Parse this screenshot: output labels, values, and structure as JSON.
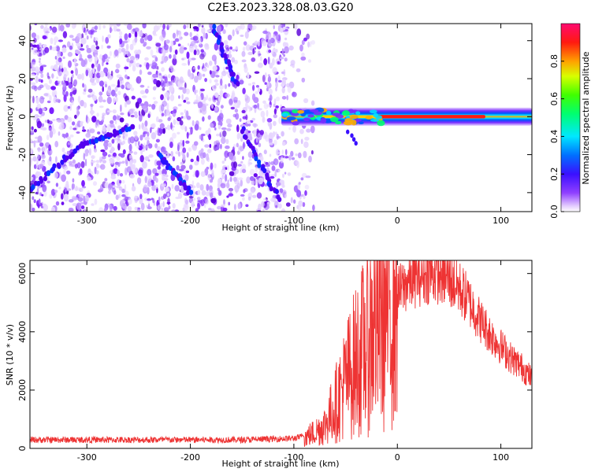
{
  "figure": {
    "title": "C2E3.2023.328.08.03.G20"
  },
  "colorbar": {
    "label": "Normalized spectral amplitude",
    "ticks": [
      "0.0",
      "0.2",
      "0.4",
      "0.6",
      "0.8"
    ],
    "tick_values": [
      0.0,
      0.2,
      0.4,
      0.6,
      0.8
    ],
    "range": [
      0,
      1
    ]
  },
  "chart_data": [
    {
      "type": "heatmap",
      "xlabel": "Height of straight line (km)",
      "ylabel": "Frequency (Hz)",
      "xlim": [
        -355,
        130
      ],
      "ylim": [
        -50,
        49
      ],
      "x_ticks": [
        -300,
        -200,
        -100,
        0,
        100
      ],
      "y_ticks": [
        -40,
        -20,
        0,
        20,
        40
      ],
      "x_tick_labels": [
        "-300",
        "-200",
        "-100",
        "0",
        "100"
      ],
      "y_tick_labels": [
        "-40",
        "-20",
        "0",
        "20",
        "40"
      ],
      "noise_region_x": [
        -355,
        -88
      ],
      "signal_band": {
        "x_start": -112,
        "x_end": 130,
        "center_frequency_hz": 0,
        "approx_half_width_hz": 3,
        "description": "narrow band near 0 Hz, peak amplitude ~1.0 between -20 and 80 km"
      },
      "streaks": [
        {
          "from": [
            -178,
            47
          ],
          "to": [
            -155,
            17
          ]
        },
        {
          "from": [
            -150,
            -7
          ],
          "to": [
            -115,
            -43
          ]
        },
        {
          "from": [
            -355,
            -38
          ],
          "to": [
            -305,
            -15
          ]
        },
        {
          "from": [
            -305,
            -15
          ],
          "to": [
            -255,
            -5
          ]
        },
        {
          "from": [
            -230,
            -20
          ],
          "to": [
            -200,
            -40
          ]
        }
      ]
    },
    {
      "type": "line",
      "xlabel": "Height of straight line (km)",
      "ylabel": "SNR (10 * v/v)",
      "xlim": [
        -355,
        130
      ],
      "ylim": [
        0,
        6450
      ],
      "x_ticks": [
        -300,
        -200,
        -100,
        0,
        100
      ],
      "y_ticks": [
        0,
        2000,
        4000,
        6000
      ],
      "x_tick_labels": [
        "-300",
        "-200",
        "-100",
        "0",
        "100"
      ],
      "y_tick_labels": [
        "0",
        "2000",
        "4000",
        "6000"
      ],
      "series": [
        {
          "color": "#ee3333",
          "x": [
            -355,
            -300,
            -250,
            -200,
            -150,
            -120,
            -100,
            -90,
            -80,
            -70,
            -60,
            -50,
            -40,
            -30,
            -20,
            -10,
            0,
            10,
            20,
            30,
            40,
            50,
            60,
            70,
            80,
            90,
            100,
            110,
            120,
            130
          ],
          "y": [
            250,
            250,
            250,
            250,
            250,
            280,
            300,
            380,
            550,
            800,
            1500,
            2300,
            3000,
            3600,
            4400,
            4900,
            5300,
            5700,
            5900,
            6000,
            6000,
            5800,
            5500,
            5000,
            4400,
            3900,
            3500,
            3100,
            2800,
            2400
          ]
        }
      ]
    }
  ]
}
